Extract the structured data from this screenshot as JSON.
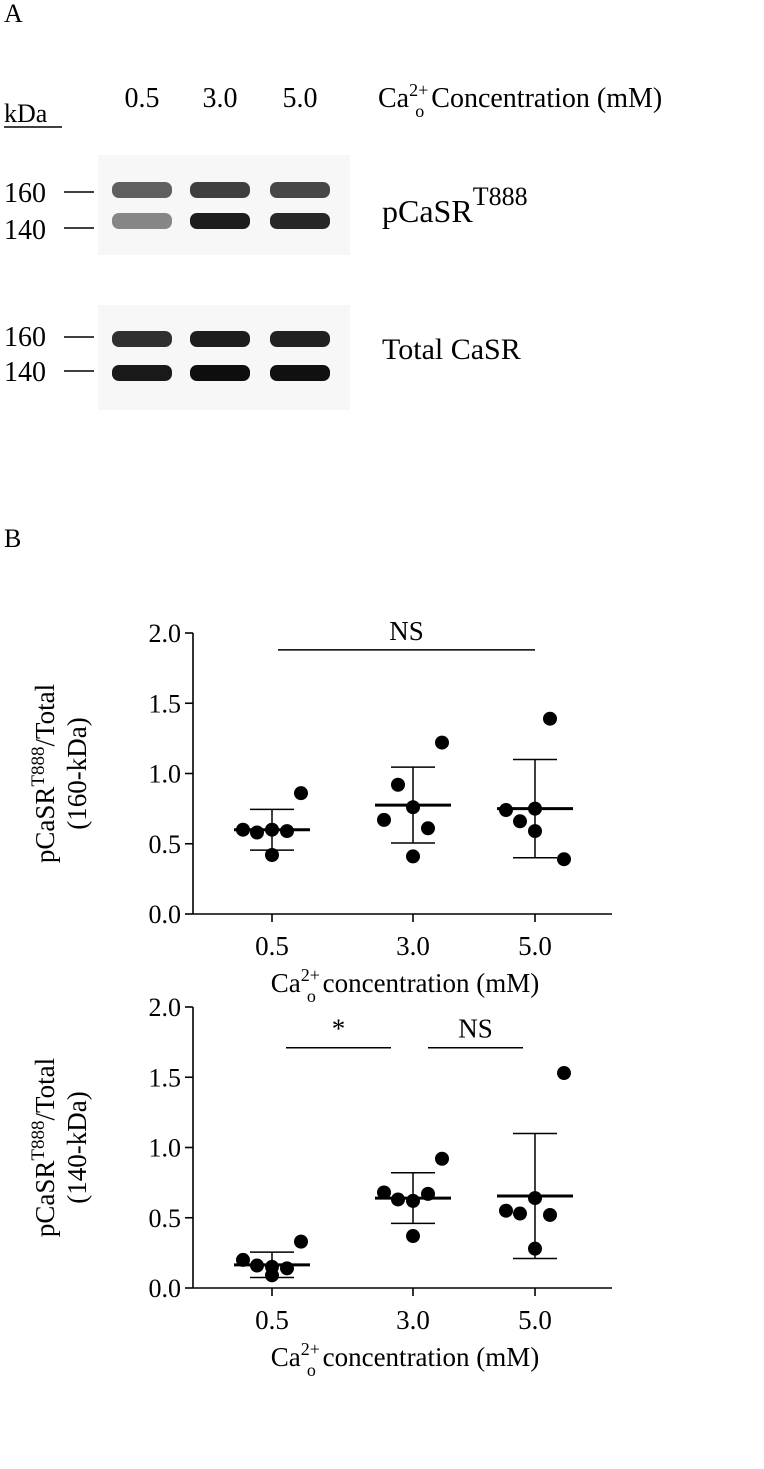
{
  "panel_a": {
    "label": "A",
    "kda_label": "kDa",
    "lanes": [
      "0.5",
      "3.0",
      "5.0"
    ],
    "concentration_header": {
      "prefix": "Ca",
      "sup": "2+",
      "sub": "o",
      "suffix": " Concentration (mM)"
    },
    "blot_top": {
      "label": {
        "main": "pCaSR",
        "sup": "T888"
      },
      "markers": [
        "160",
        "140"
      ],
      "band_intensity_160": [
        0.55,
        0.72,
        0.68
      ],
      "band_intensity_140": [
        0.35,
        0.9,
        0.85
      ]
    },
    "blot_bottom": {
      "label": "Total CaSR",
      "markers": [
        "160",
        "140"
      ],
      "band_intensity_160": [
        0.8,
        0.9,
        0.88
      ],
      "band_intensity_140": [
        0.92,
        0.98,
        0.97
      ]
    }
  },
  "panel_b": {
    "label": "B"
  },
  "chart_data": [
    {
      "type": "scatter",
      "categories": [
        "0.5",
        "3.0",
        "5.0"
      ],
      "ylim": [
        0,
        2.0
      ],
      "yticks": [
        "0.0",
        "0.5",
        "1.0",
        "1.5",
        "2.0"
      ],
      "ylabel": {
        "main": "pCaSR",
        "sup": "T888",
        "rest": "/Total",
        "line2": "(160-kDa)"
      },
      "xlabel": {
        "prefix": "Ca",
        "sup": "2+",
        "sub": "o",
        "suffix": " concentration (mM)"
      },
      "series": [
        {
          "category": "0.5",
          "points": [
            0.6,
            0.58,
            0.6,
            0.59,
            0.86,
            0.42
          ],
          "mean": 0.6,
          "sd": 0.145
        },
        {
          "category": "3.0",
          "points": [
            0.67,
            0.92,
            0.76,
            0.61,
            1.22,
            0.41
          ],
          "mean": 0.775,
          "sd": 0.27
        },
        {
          "category": "5.0",
          "points": [
            0.74,
            0.66,
            0.59,
            1.39,
            0.39,
            0.75
          ],
          "mean": 0.75,
          "sd": 0.35
        }
      ],
      "annotations": [
        {
          "text": "NS",
          "from": "0.5",
          "to": "5.0",
          "y": 1.88
        }
      ]
    },
    {
      "type": "scatter",
      "categories": [
        "0.5",
        "3.0",
        "5.0"
      ],
      "ylim": [
        0,
        2.0
      ],
      "yticks": [
        "0.0",
        "0.5",
        "1.0",
        "1.5",
        "2.0"
      ],
      "ylabel": {
        "main": "pCaSR",
        "sup": "T888",
        "rest": "/Total",
        "line2": "(140-kDa)"
      },
      "xlabel": {
        "prefix": "Ca",
        "sup": "2+",
        "sub": "o",
        "suffix": " concentration (mM)"
      },
      "series": [
        {
          "category": "0.5",
          "points": [
            0.2,
            0.16,
            0.15,
            0.14,
            0.33,
            0.09
          ],
          "mean": 0.165,
          "sd": 0.09
        },
        {
          "category": "3.0",
          "points": [
            0.68,
            0.63,
            0.62,
            0.67,
            0.92,
            0.37
          ],
          "mean": 0.64,
          "sd": 0.18
        },
        {
          "category": "5.0",
          "points": [
            0.55,
            0.53,
            0.64,
            0.52,
            1.53,
            0.28
          ],
          "mean": 0.655,
          "sd": 0.445
        }
      ],
      "annotations": [
        {
          "text": "*",
          "from": "0.5",
          "to": "3.0",
          "y": 1.71
        },
        {
          "text": "NS",
          "from": "3.0",
          "to": "5.0",
          "y": 1.71
        }
      ]
    }
  ]
}
